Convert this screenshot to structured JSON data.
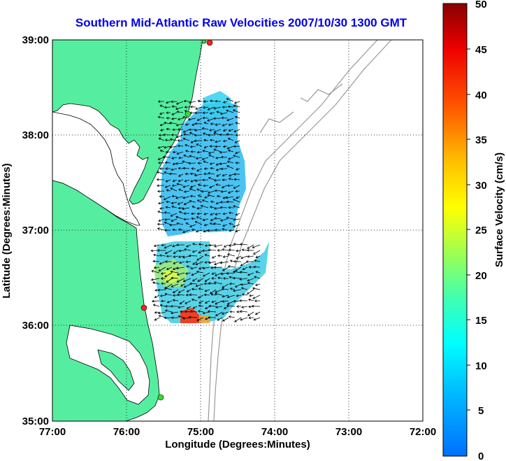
{
  "title": "Southern Mid-Atlantic Raw Velocities 2007/10/30 1300 GMT",
  "map": {
    "x_axis": {
      "label": "Longitude (Degrees:Minutes)",
      "ticks": [
        "77:00",
        "76:00",
        "75:00",
        "74:00",
        "73:00",
        "72:00"
      ]
    },
    "y_axis": {
      "label": "Latitude (Degrees:Minutes)",
      "ticks": [
        "39:00",
        "38:00",
        "37:00",
        "36:00",
        "35:00"
      ]
    },
    "grid": "dotted",
    "colors": {
      "land": "#55eea0",
      "ocean": "#ffffff",
      "bathymetry": "#999999",
      "site_marker_red": "#ff2020",
      "site_marker_green": "#33dd33",
      "arrows": "#000000"
    },
    "icons": [
      "radar-site-marker"
    ]
  },
  "colorbar": {
    "label": "Surface Velocity (cm/s)",
    "ticks": [
      "50",
      "45",
      "40",
      "35",
      "30",
      "25",
      "20",
      "15",
      "10",
      "5",
      "0"
    ],
    "min": 0,
    "max": 50,
    "colormap": "jet"
  }
}
